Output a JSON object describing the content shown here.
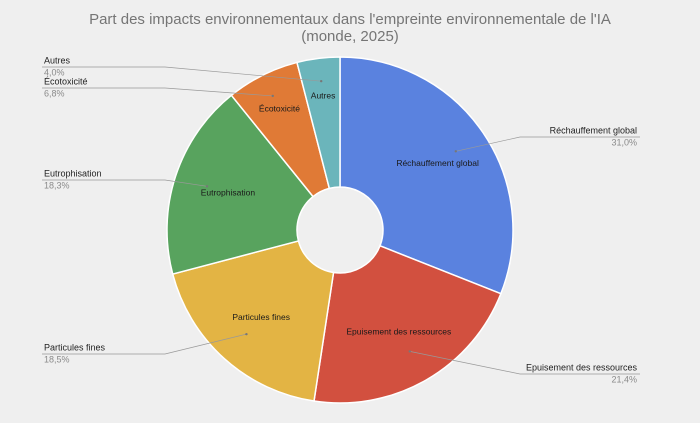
{
  "chart_data": {
    "type": "donut",
    "title": [
      "Part des impacts environnementaux dans l'empreinte environnementale de l'IA",
      "(monde, 2025)"
    ],
    "categories": [
      "Réchauffement global",
      "Epuisement des ressources",
      "Particules fines",
      "Eutrophisation",
      "Écotoxicité",
      "Autres"
    ],
    "values": [
      31.0,
      21.4,
      18.5,
      18.3,
      6.8,
      4.0
    ],
    "value_labels": [
      "31,0%",
      "21,4%",
      "18,5%",
      "18,3%",
      "6,8%",
      "4,0%"
    ],
    "colors": [
      "#5a82df",
      "#d2503f",
      "#e3b444",
      "#58a35e",
      "#e07a36",
      "#6bb5bb"
    ]
  }
}
